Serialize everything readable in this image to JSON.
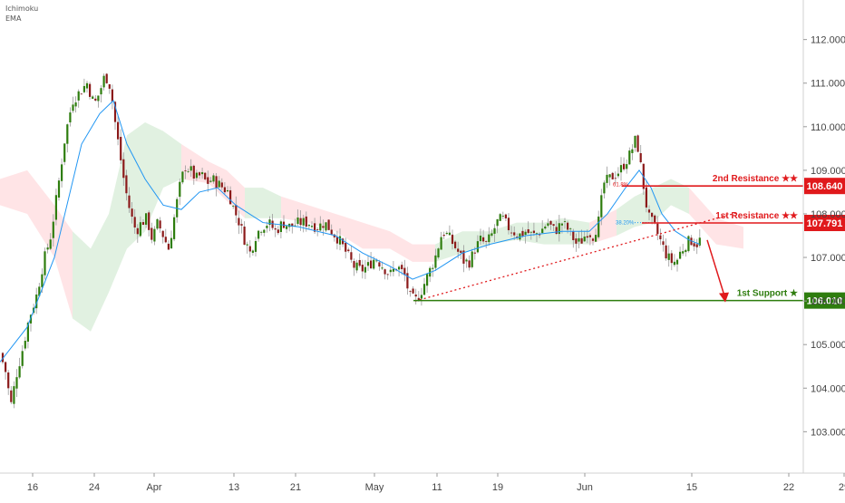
{
  "indicators": [
    "Ichimoku",
    "EMA"
  ],
  "chart_data": {
    "type": "candlestick",
    "y_axis": {
      "position": "right",
      "range": [
        102.3,
        112.7
      ],
      "ticks": [
        "112.000",
        "111.000",
        "110.000",
        "109.000",
        "108.000",
        "107.000",
        "106.000",
        "105.000",
        "104.000",
        "103.000"
      ]
    },
    "x_axis": {
      "ticks": [
        "16",
        "24",
        "Apr",
        "13",
        "21",
        "May",
        "11",
        "19",
        "Jun",
        "15",
        "22",
        "29"
      ]
    },
    "price_path": [
      [
        0,
        104.8
      ],
      [
        6,
        104.4
      ],
      [
        12,
        103.6
      ],
      [
        18,
        104.3
      ],
      [
        25,
        104.9
      ],
      [
        32,
        105.6
      ],
      [
        40,
        106.1
      ],
      [
        48,
        106.9
      ],
      [
        56,
        107.5
      ],
      [
        64,
        108.6
      ],
      [
        72,
        109.8
      ],
      [
        80,
        110.6
      ],
      [
        88,
        110.8
      ],
      [
        96,
        111.0
      ],
      [
        104,
        110.5
      ],
      [
        110,
        110.8
      ],
      [
        116,
        111.2
      ],
      [
        122,
        110.9
      ],
      [
        127,
        110.1
      ],
      [
        132,
        109.4
      ],
      [
        138,
        108.6
      ],
      [
        144,
        108.0
      ],
      [
        150,
        107.6
      ],
      [
        156,
        107.8
      ],
      [
        162,
        107.9
      ],
      [
        168,
        107.4
      ],
      [
        174,
        107.8
      ],
      [
        180,
        107.5
      ],
      [
        186,
        107.2
      ],
      [
        192,
        107.9
      ],
      [
        198,
        108.6
      ],
      [
        204,
        109.1
      ],
      [
        210,
        109.0
      ],
      [
        216,
        108.8
      ],
      [
        222,
        108.9
      ],
      [
        228,
        108.7
      ],
      [
        234,
        108.8
      ],
      [
        240,
        108.7
      ],
      [
        246,
        108.6
      ],
      [
        252,
        108.5
      ],
      [
        258,
        108.1
      ],
      [
        264,
        107.8
      ],
      [
        270,
        107.4
      ],
      [
        276,
        107.1
      ],
      [
        282,
        107.5
      ],
      [
        288,
        107.7
      ],
      [
        296,
        107.8
      ],
      [
        304,
        107.6
      ],
      [
        312,
        107.8
      ],
      [
        320,
        107.7
      ],
      [
        330,
        107.8
      ],
      [
        340,
        107.8
      ],
      [
        350,
        107.7
      ],
      [
        358,
        107.8
      ],
      [
        366,
        107.6
      ],
      [
        374,
        107.4
      ],
      [
        382,
        107.1
      ],
      [
        390,
        106.8
      ],
      [
        398,
        106.7
      ],
      [
        406,
        106.8
      ],
      [
        414,
        107.0
      ],
      [
        422,
        106.8
      ],
      [
        430,
        106.6
      ],
      [
        438,
        106.8
      ],
      [
        446,
        106.6
      ],
      [
        452,
        106.1
      ],
      [
        458,
        106.0
      ],
      [
        464,
        106.2
      ],
      [
        472,
        106.6
      ],
      [
        480,
        107.0
      ],
      [
        488,
        107.6
      ],
      [
        494,
        107.5
      ],
      [
        500,
        107.3
      ],
      [
        506,
        107.1
      ],
      [
        512,
        106.9
      ],
      [
        518,
        106.9
      ],
      [
        524,
        107.2
      ],
      [
        530,
        107.4
      ],
      [
        536,
        107.3
      ],
      [
        542,
        107.5
      ],
      [
        548,
        107.8
      ],
      [
        554,
        107.9
      ],
      [
        560,
        107.7
      ],
      [
        566,
        107.6
      ],
      [
        572,
        107.5
      ],
      [
        580,
        107.6
      ],
      [
        588,
        107.5
      ],
      [
        596,
        107.6
      ],
      [
        604,
        107.8
      ],
      [
        612,
        107.6
      ],
      [
        620,
        107.8
      ],
      [
        628,
        107.6
      ],
      [
        636,
        107.3
      ],
      [
        642,
        107.4
      ],
      [
        648,
        107.6
      ],
      [
        654,
        107.5
      ],
      [
        660,
        107.8
      ],
      [
        666,
        108.7
      ],
      [
        672,
        108.8
      ],
      [
        678,
        108.9
      ],
      [
        684,
        109.0
      ],
      [
        690,
        109.2
      ],
      [
        696,
        109.4
      ],
      [
        700,
        109.7
      ],
      [
        704,
        109.5
      ],
      [
        708,
        108.9
      ],
      [
        712,
        108.3
      ],
      [
        716,
        107.9
      ],
      [
        722,
        107.7
      ],
      [
        728,
        107.4
      ],
      [
        734,
        107.1
      ],
      [
        740,
        106.9
      ],
      [
        746,
        106.9
      ],
      [
        750,
        107.1
      ],
      [
        756,
        107.3
      ],
      [
        762,
        107.4
      ],
      [
        768,
        107.3
      ],
      [
        772,
        107.4
      ]
    ],
    "ema_path": [
      [
        0,
        104.6
      ],
      [
        30,
        105.4
      ],
      [
        60,
        107.0
      ],
      [
        90,
        109.6
      ],
      [
        110,
        110.3
      ],
      [
        125,
        110.6
      ],
      [
        140,
        109.6
      ],
      [
        160,
        108.8
      ],
      [
        180,
        108.2
      ],
      [
        200,
        108.1
      ],
      [
        220,
        108.5
      ],
      [
        240,
        108.6
      ],
      [
        260,
        108.2
      ],
      [
        290,
        107.8
      ],
      [
        330,
        107.7
      ],
      [
        370,
        107.5
      ],
      [
        400,
        107.1
      ],
      [
        430,
        106.8
      ],
      [
        455,
        106.5
      ],
      [
        480,
        106.7
      ],
      [
        510,
        107.1
      ],
      [
        540,
        107.3
      ],
      [
        580,
        107.5
      ],
      [
        620,
        107.6
      ],
      [
        650,
        107.6
      ],
      [
        670,
        108.0
      ],
      [
        690,
        108.6
      ],
      [
        705,
        109.0
      ],
      [
        718,
        108.6
      ],
      [
        730,
        108.0
      ],
      [
        745,
        107.6
      ],
      [
        760,
        107.4
      ],
      [
        772,
        107.3
      ]
    ],
    "cloud_path": [
      [
        0,
        108.2,
        108.8,
        "bear"
      ],
      [
        30,
        108.0,
        109.0,
        "bear"
      ],
      [
        60,
        107.0,
        108.2,
        "bear"
      ],
      [
        80,
        105.6,
        107.6,
        "bull"
      ],
      [
        100,
        105.3,
        107.2,
        "bull"
      ],
      [
        120,
        106.2,
        108.0,
        "bull"
      ],
      [
        140,
        107.2,
        109.8,
        "bull"
      ],
      [
        160,
        107.6,
        110.1,
        "bull"
      ],
      [
        180,
        108.6,
        109.9,
        "bull"
      ],
      [
        200,
        108.8,
        109.6,
        "bear"
      ],
      [
        230,
        108.7,
        109.2,
        "bear"
      ],
      [
        250,
        108.3,
        109.0,
        "bear"
      ],
      [
        270,
        107.9,
        108.6,
        "bull"
      ],
      [
        290,
        107.9,
        108.6,
        "bull"
      ],
      [
        310,
        107.9,
        108.4,
        "bear"
      ],
      [
        340,
        107.8,
        108.2,
        "bear"
      ],
      [
        370,
        107.6,
        108.0,
        "bear"
      ],
      [
        400,
        107.2,
        107.8,
        "bear"
      ],
      [
        430,
        107.2,
        107.6,
        "bear"
      ],
      [
        455,
        106.9,
        107.3,
        "bear"
      ],
      [
        480,
        106.9,
        107.3,
        "bull"
      ],
      [
        510,
        107.1,
        107.6,
        "bull"
      ],
      [
        540,
        107.3,
        107.6,
        "bull"
      ],
      [
        570,
        107.4,
        107.8,
        "bull"
      ],
      [
        600,
        107.3,
        107.8,
        "bull"
      ],
      [
        620,
        107.3,
        107.9,
        "bull"
      ],
      [
        650,
        107.3,
        107.8,
        "bear"
      ],
      [
        680,
        107.5,
        108.1,
        "bull"
      ],
      [
        700,
        107.7,
        108.4,
        "bull"
      ],
      [
        720,
        107.8,
        108.6,
        "bull"
      ],
      [
        740,
        108.2,
        108.8,
        "bull"
      ],
      [
        760,
        108.0,
        108.6,
        "bear"
      ],
      [
        790,
        107.3,
        107.9,
        "bear"
      ],
      [
        820,
        107.2,
        107.7,
        "bear"
      ]
    ],
    "levels": [
      {
        "name": "2nd Resistance ★★",
        "value": 108.64,
        "badge": "108.640",
        "color": "#e0191c",
        "stars": 2
      },
      {
        "name": "1st Resistance ★★",
        "value": 107.791,
        "badge": "107.791",
        "color": "#e0191c",
        "stars": 2
      },
      {
        "name": "1st Support ★",
        "value": 106.01,
        "badge": "106.010",
        "color": "#2e7d0e",
        "stars": 1
      }
    ],
    "fib_labels": [
      "61.8%",
      "38.20%"
    ],
    "trendline": {
      "from": [
        104.8,
        "start"
      ],
      "style": "dotted",
      "color": "#e0191c"
    },
    "projection_arrow": {
      "color": "#e0191c",
      "to": 106.01
    }
  },
  "colors": {
    "bull": "#2e7d0e",
    "bear": "#8b1a1a",
    "ema": "#2196f3",
    "cloud_bull": "#c8e6c9",
    "cloud_bear": "#ffcdd2",
    "axis_text": "#444444"
  }
}
